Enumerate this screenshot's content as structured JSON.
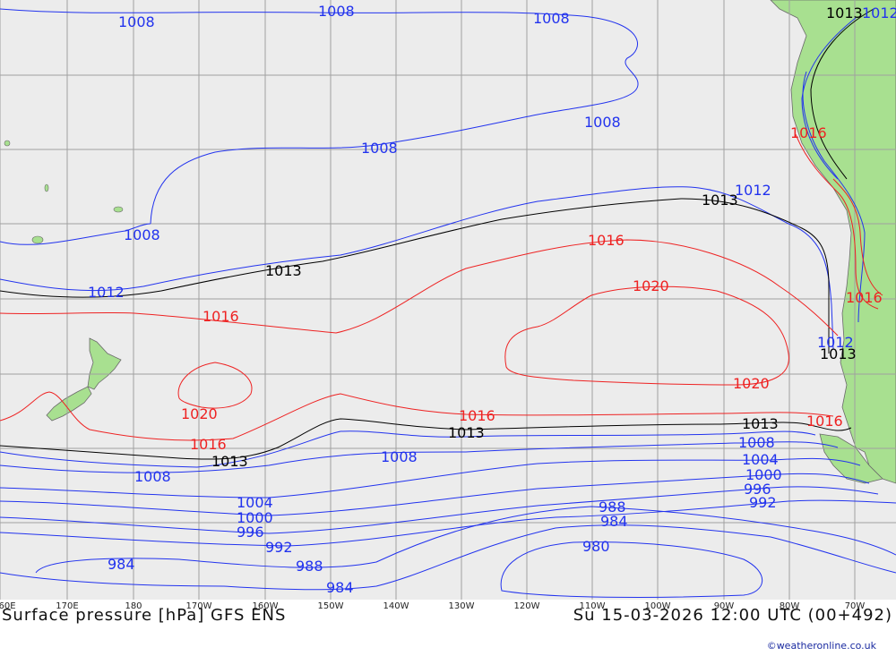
{
  "title": "Surface pressure [hPa] GFS ENS",
  "valid_time": "Su 15-03-2026 12:00 UTC (00+492)",
  "credit": "©weatheronline.co.uk",
  "longitude_ticks": [
    "60E",
    "170E",
    "180",
    "170W",
    "160W",
    "150W",
    "140W",
    "130W",
    "120W",
    "110W",
    "100W",
    "90W",
    "80W",
    "70W"
  ],
  "colors": {
    "ocean": "#ececec",
    "land": "#a8e090",
    "grid": "#a0a0a0",
    "low": "#2233ee",
    "ref": "#000000",
    "high": "#ee2222"
  },
  "isobar_labels": {
    "i1008_a": "1008",
    "i1008_b": "1008",
    "i1008_c": "1008",
    "i1008_d": "1008",
    "i1008_e": "1008",
    "i1008_f": "1008",
    "i1012_a": "1012",
    "i1012_b": "1012",
    "i1012_c": "1012",
    "i1013_a": "1013",
    "i1013_b": "1013",
    "i1013_c": "1013",
    "i1013_d": "1013",
    "i1013_e": "1013",
    "i1013_f": "1013",
    "i1013_g": "1013",
    "i1016_a": "1016",
    "i1016_b": "1016",
    "i1016_c": "1016",
    "i1016_d": "1016",
    "i1016_e": "1016",
    "i1016_f": "1016",
    "i1016_g": "1016",
    "i1020_a": "1020",
    "i1020_b": "1020",
    "i1020_c": "1020",
    "i1008_s1": "1008",
    "i1008_s2": "1008",
    "i1008_s3": "1008",
    "i1004_a": "1004",
    "i1004_b": "1004",
    "i1000_a": "1000",
    "i1000_b": "1000",
    "i996_a": "996",
    "i996_b": "996",
    "i992_a": "992",
    "i992_b": "992",
    "i988_a": "988",
    "i988_b": "988",
    "i984_a": "984",
    "i984_b": "984",
    "i984_c": "984",
    "i980_a": "980",
    "i1012_top": "1012"
  }
}
